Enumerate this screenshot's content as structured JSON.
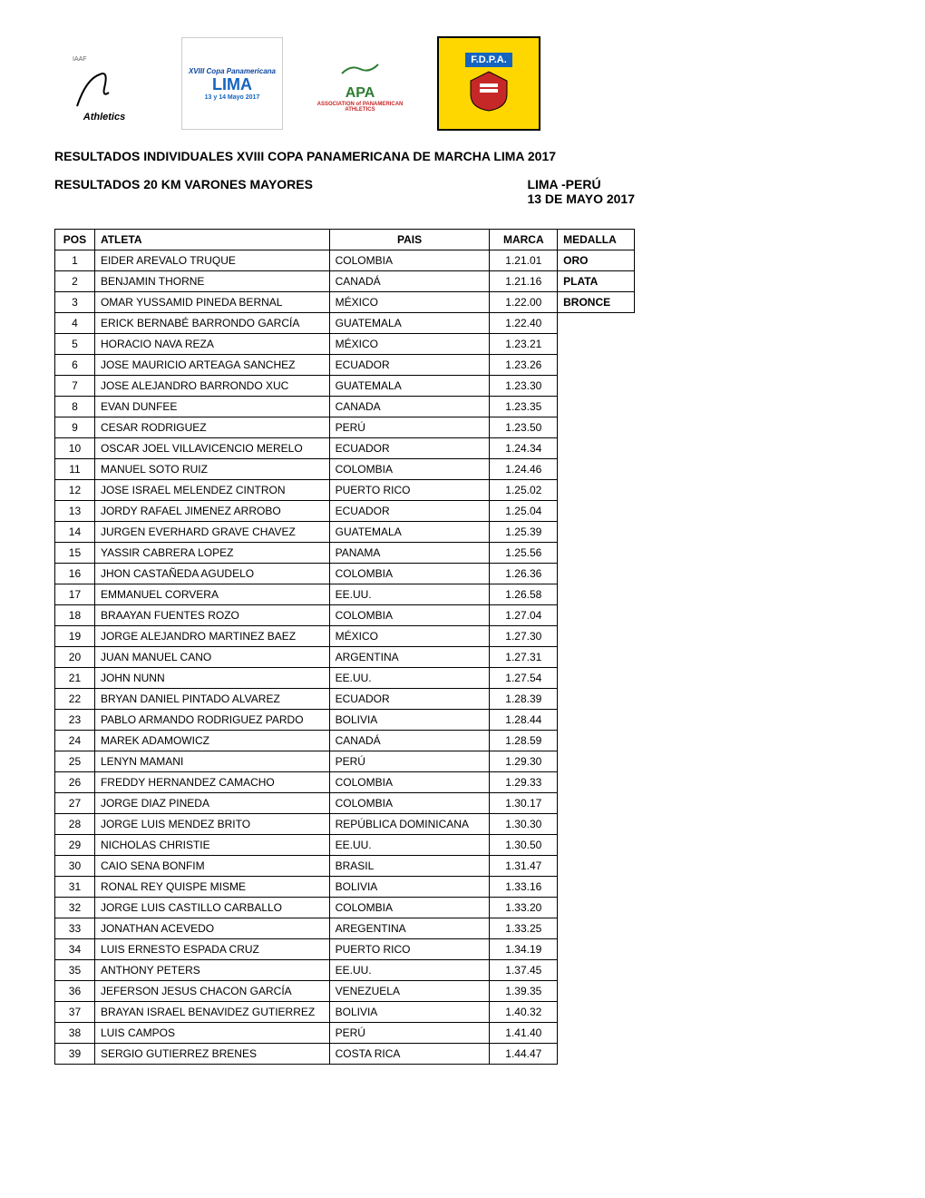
{
  "header": {
    "logos": [
      "IAAF Athletics",
      "XVIII Copa LIMA 2017",
      "APA PANAMERICAN ATHLETICS",
      "F.D.P.A."
    ]
  },
  "title": "RESULTADOS INDIVIDUALES XVIII COPA PANAMERICANA DE MARCHA LIMA 2017",
  "subtitle_left": "RESULTADOS 20 KM VARONES MAYORES",
  "subtitle_right_1": "LIMA -PERÚ",
  "subtitle_right_2": "13 DE MAYO 2017",
  "columns": {
    "pos": "POS",
    "atleta": "ATLETA",
    "pais": "PAIS",
    "marca": "MARCA",
    "medalla": "MEDALLA"
  },
  "rows": [
    {
      "pos": "1",
      "atleta": "EIDER AREVALO TRUQUE",
      "pais": "COLOMBIA",
      "marca": "1.21.01",
      "medalla": "ORO"
    },
    {
      "pos": "2",
      "atleta": "BENJAMIN THORNE",
      "pais": "CANADÁ",
      "marca": "1.21.16",
      "medalla": "PLATA"
    },
    {
      "pos": "3",
      "atleta": "OMAR YUSSAMID PINEDA BERNAL",
      "pais": "MÉXICO",
      "marca": "1.22.00",
      "medalla": "BRONCE"
    },
    {
      "pos": "4",
      "atleta": "ERICK BERNABÉ BARRONDO GARCÍA",
      "pais": "GUATEMALA",
      "marca": "1.22.40",
      "medalla": ""
    },
    {
      "pos": "5",
      "atleta": "HORACIO NAVA REZA",
      "pais": "MÉXICO",
      "marca": "1.23.21",
      "medalla": ""
    },
    {
      "pos": "6",
      "atleta": "JOSE MAURICIO ARTEAGA SANCHEZ",
      "pais": "ECUADOR",
      "marca": "1.23.26",
      "medalla": ""
    },
    {
      "pos": "7",
      "atleta": "JOSE ALEJANDRO BARRONDO XUC",
      "pais": "GUATEMALA",
      "marca": "1.23.30",
      "medalla": ""
    },
    {
      "pos": "8",
      "atleta": "EVAN DUNFEE",
      "pais": "CANADA",
      "marca": "1.23.35",
      "medalla": ""
    },
    {
      "pos": "9",
      "atleta": "CESAR RODRIGUEZ",
      "pais": "PERÚ",
      "marca": "1.23.50",
      "medalla": ""
    },
    {
      "pos": "10",
      "atleta": "OSCAR JOEL VILLAVICENCIO MERELO",
      "pais": "ECUADOR",
      "marca": "1.24.34",
      "medalla": ""
    },
    {
      "pos": "11",
      "atleta": "MANUEL SOTO RUIZ",
      "pais": "COLOMBIA",
      "marca": "1.24.46",
      "medalla": ""
    },
    {
      "pos": "12",
      "atleta": "JOSE ISRAEL MELENDEZ CINTRON",
      "pais": "PUERTO RICO",
      "marca": "1.25.02",
      "medalla": ""
    },
    {
      "pos": "13",
      "atleta": "JORDY RAFAEL JIMENEZ ARROBO",
      "pais": "ECUADOR",
      "marca": "1.25.04",
      "medalla": ""
    },
    {
      "pos": "14",
      "atleta": "JURGEN EVERHARD GRAVE CHAVEZ",
      "pais": "GUATEMALA",
      "marca": "1.25.39",
      "medalla": ""
    },
    {
      "pos": "15",
      "atleta": "YASSIR CABRERA LOPEZ",
      "pais": "PANAMA",
      "marca": "1.25.56",
      "medalla": ""
    },
    {
      "pos": "16",
      "atleta": "JHON CASTAÑEDA AGUDELO",
      "pais": "COLOMBIA",
      "marca": "1.26.36",
      "medalla": ""
    },
    {
      "pos": "17",
      "atleta": "EMMANUEL CORVERA",
      "pais": "EE.UU.",
      "marca": "1.26.58",
      "medalla": ""
    },
    {
      "pos": "18",
      "atleta": "BRAAYAN FUENTES ROZO",
      "pais": "COLOMBIA",
      "marca": "1.27.04",
      "medalla": ""
    },
    {
      "pos": "19",
      "atleta": "JORGE ALEJANDRO MARTINEZ BAEZ",
      "pais": "MÉXICO",
      "marca": "1.27.30",
      "medalla": ""
    },
    {
      "pos": "20",
      "atleta": "JUAN MANUEL CANO",
      "pais": "ARGENTINA",
      "marca": "1.27.31",
      "medalla": ""
    },
    {
      "pos": "21",
      "atleta": "JOHN NUNN",
      "pais": "EE.UU.",
      "marca": "1.27.54",
      "medalla": ""
    },
    {
      "pos": "22",
      "atleta": "BRYAN DANIEL PINTADO ALVAREZ",
      "pais": "ECUADOR",
      "marca": "1.28.39",
      "medalla": ""
    },
    {
      "pos": "23",
      "atleta": "PABLO ARMANDO RODRIGUEZ PARDO",
      "pais": "BOLIVIA",
      "marca": "1.28.44",
      "medalla": ""
    },
    {
      "pos": "24",
      "atleta": "MAREK ADAMOWICZ",
      "pais": "CANADÁ",
      "marca": "1.28.59",
      "medalla": ""
    },
    {
      "pos": "25",
      "atleta": "LENYN MAMANI",
      "pais": "PERÚ",
      "marca": "1.29.30",
      "medalla": ""
    },
    {
      "pos": "26",
      "atleta": "FREDDY HERNANDEZ CAMACHO",
      "pais": "COLOMBIA",
      "marca": "1.29.33",
      "medalla": ""
    },
    {
      "pos": "27",
      "atleta": "JORGE DIAZ PINEDA",
      "pais": "COLOMBIA",
      "marca": "1.30.17",
      "medalla": ""
    },
    {
      "pos": "28",
      "atleta": "JORGE LUIS MENDEZ BRITO",
      "pais": "REPÚBLICA DOMINICANA",
      "marca": "1.30.30",
      "medalla": ""
    },
    {
      "pos": "29",
      "atleta": "NICHOLAS CHRISTIE",
      "pais": "EE.UU.",
      "marca": "1.30.50",
      "medalla": ""
    },
    {
      "pos": "30",
      "atleta": "CAIO SENA BONFIM",
      "pais": "BRASIL",
      "marca": "1.31.47",
      "medalla": ""
    },
    {
      "pos": "31",
      "atleta": "RONAL REY QUISPE MISME",
      "pais": "BOLIVIA",
      "marca": "1.33.16",
      "medalla": ""
    },
    {
      "pos": "32",
      "atleta": "JORGE LUIS CASTILLO CARBALLO",
      "pais": "COLOMBIA",
      "marca": "1.33.20",
      "medalla": ""
    },
    {
      "pos": "33",
      "atleta": "JONATHAN ACEVEDO",
      "pais": "AREGENTINA",
      "marca": "1.33.25",
      "medalla": ""
    },
    {
      "pos": "34",
      "atleta": "LUIS ERNESTO ESPADA CRUZ",
      "pais": "PUERTO RICO",
      "marca": "1.34.19",
      "medalla": ""
    },
    {
      "pos": "35",
      "atleta": "ANTHONY PETERS",
      "pais": "EE.UU.",
      "marca": "1.37.45",
      "medalla": ""
    },
    {
      "pos": "36",
      "atleta": "JEFERSON JESUS CHACON GARCÍA",
      "pais": "VENEZUELA",
      "marca": "1.39.35",
      "medalla": ""
    },
    {
      "pos": "37",
      "atleta": "BRAYAN ISRAEL BENAVIDEZ GUTIERREZ",
      "pais": "BOLIVIA",
      "marca": "1.40.32",
      "medalla": ""
    },
    {
      "pos": "38",
      "atleta": "LUIS CAMPOS",
      "pais": "PERÚ",
      "marca": "1.41.40",
      "medalla": ""
    },
    {
      "pos": "39",
      "atleta": "SERGIO GUTIERREZ BRENES",
      "pais": "COSTA RICA",
      "marca": "1.44.47",
      "medalla": ""
    }
  ]
}
